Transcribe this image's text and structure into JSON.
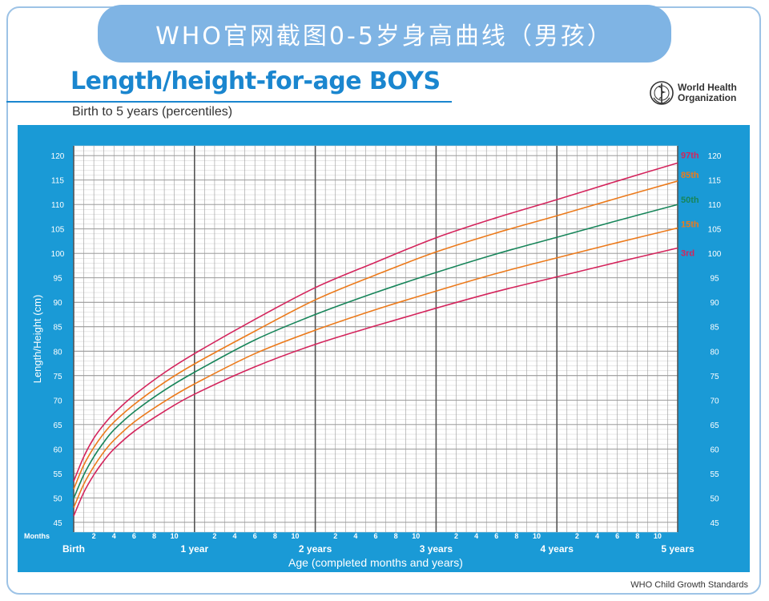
{
  "banner": {
    "text": "WHO官网截图0-5岁身高曲线（男孩）"
  },
  "header": {
    "title": "Length/height-for-age BOYS",
    "subtitle": "Birth to 5 years (percentiles)",
    "org_line1": "World Health",
    "org_line2": "Organization",
    "logo_icon": "who-emblem-icon"
  },
  "footer": {
    "credit": "WHO Child Growth Standards"
  },
  "colors": {
    "panel": "#1a9ad6",
    "grid_bg": "#ffffff",
    "p3": "#d4245c",
    "p15": "#ec7a1b",
    "p50": "#17855a",
    "p85": "#ec7a1b",
    "p97": "#d4245c"
  },
  "chart_data": {
    "type": "line",
    "title": "Length/height-for-age BOYS",
    "subtitle": "Birth to 5 years (percentiles)",
    "xlabel": "Age (completed months and years)",
    "ylabel": "Length/Height (cm)",
    "xlim": [
      0,
      60
    ],
    "ylim": [
      43,
      122
    ],
    "y_ticks": [
      45,
      50,
      55,
      60,
      65,
      70,
      75,
      80,
      85,
      90,
      95,
      100,
      105,
      110,
      115,
      120
    ],
    "months_label": "Months",
    "month_ticks": [
      "2",
      "4",
      "6",
      "8",
      "10"
    ],
    "year_labels": [
      "Birth",
      "1 year",
      "2 years",
      "3 years",
      "4 years",
      "5 years"
    ],
    "grid": true,
    "x": [
      0,
      1,
      2,
      3,
      4,
      6,
      9,
      12,
      18,
      24,
      30,
      36,
      42,
      48,
      54,
      60
    ],
    "series": [
      {
        "name": "97th",
        "values": [
          53.4,
          58.4,
          62.2,
          65.0,
          67.3,
          71.0,
          75.6,
          79.5,
          86.5,
          93.0,
          98.2,
          103.2,
          107.3,
          111.0,
          114.8,
          118.5
        ]
      },
      {
        "name": "85th",
        "values": [
          51.8,
          56.7,
          60.3,
          63.2,
          65.5,
          69.1,
          73.6,
          77.4,
          84.1,
          90.5,
          95.6,
          100.3,
          104.2,
          107.7,
          111.3,
          114.8
        ]
      },
      {
        "name": "50th",
        "values": [
          49.9,
          54.7,
          58.4,
          61.4,
          63.9,
          67.6,
          72.0,
          75.7,
          82.3,
          87.5,
          92.0,
          96.1,
          99.9,
          103.3,
          106.7,
          110.0
        ]
      },
      {
        "name": "15th",
        "values": [
          48.0,
          52.8,
          56.4,
          59.4,
          61.8,
          65.5,
          69.7,
          73.3,
          79.5,
          84.3,
          88.5,
          92.3,
          95.9,
          99.1,
          102.2,
          105.2
        ]
      },
      {
        "name": "3rd",
        "values": [
          46.3,
          51.1,
          54.7,
          57.6,
          60.0,
          63.6,
          67.7,
          71.2,
          76.8,
          81.4,
          85.2,
          88.8,
          92.2,
          95.2,
          98.2,
          101.1
        ]
      }
    ]
  }
}
